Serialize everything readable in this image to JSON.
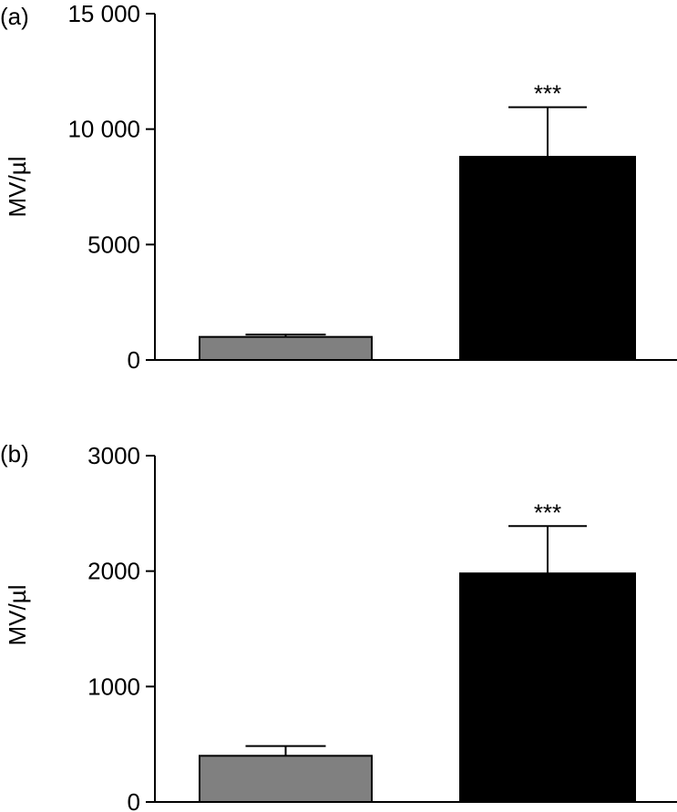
{
  "chart_data": [
    {
      "type": "bar",
      "panel_label": "(a)",
      "ylabel": "MV/µl",
      "ylim": [
        0,
        15000
      ],
      "yticks": [
        0,
        5000,
        10000,
        15000
      ],
      "ytick_labels": [
        "0",
        "5000",
        "10 000",
        "15 000"
      ],
      "categories": [
        "",
        ""
      ],
      "values": [
        1000,
        8800
      ],
      "errors": [
        100,
        2150
      ],
      "bar_colors": [
        "#808080",
        "#000000"
      ],
      "annotations": [
        "",
        "***"
      ]
    },
    {
      "type": "bar",
      "panel_label": "(b)",
      "ylabel": "MV/µl",
      "ylim": [
        0,
        3000
      ],
      "yticks": [
        0,
        1000,
        2000,
        3000
      ],
      "ytick_labels": [
        "0",
        "1000",
        "2000",
        "3000"
      ],
      "categories": [
        "",
        ""
      ],
      "values": [
        400,
        1980
      ],
      "errors": [
        85,
        410
      ],
      "bar_colors": [
        "#808080",
        "#000000"
      ],
      "annotations": [
        "",
        "***"
      ]
    }
  ]
}
